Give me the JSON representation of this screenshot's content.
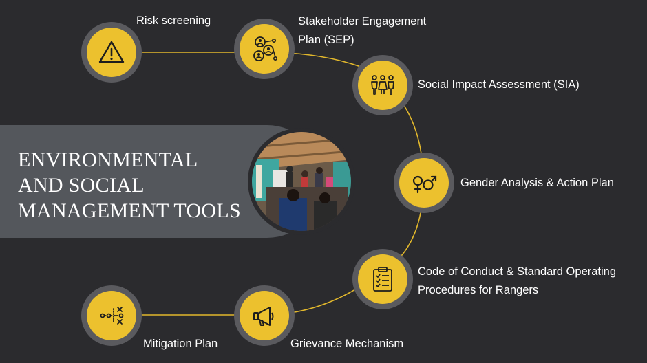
{
  "title": {
    "lines": [
      "ENVIRONMENTAL",
      "AND SOCIAL",
      "MANAGEMENT TOOLS"
    ]
  },
  "colors": {
    "background": "#2b2b2e",
    "band": "#54575c",
    "node_ring": "#5a5a5e",
    "node_fill": "#ecc12e",
    "connector": "#e2b82c",
    "text": "#ffffff"
  },
  "nodes": [
    {
      "id": "risk",
      "icon": "warning-icon",
      "label_lines": [
        "Risk screening"
      ]
    },
    {
      "id": "sep",
      "icon": "stakeholder-network-icon",
      "label_lines": [
        "Stakeholder Engagement",
        "Plan (SEP)"
      ]
    },
    {
      "id": "sia",
      "icon": "people-group-icon",
      "label_lines": [
        "Social Impact Assessment (SIA)"
      ]
    },
    {
      "id": "gender",
      "icon": "gender-symbols-icon",
      "label_lines": [
        "Gender Analysis & Action Plan"
      ]
    },
    {
      "id": "conduct",
      "icon": "clipboard-checklist-icon",
      "label_lines": [
        "Code of Conduct & Standard Operating",
        "Procedures for Rangers"
      ]
    },
    {
      "id": "grievance",
      "icon": "megaphone-icon",
      "label_lines": [
        "Grievance Mechanism"
      ]
    },
    {
      "id": "mitigation",
      "icon": "strategy-plan-icon",
      "label_lines": [
        "Mitigation Plan"
      ]
    }
  ]
}
